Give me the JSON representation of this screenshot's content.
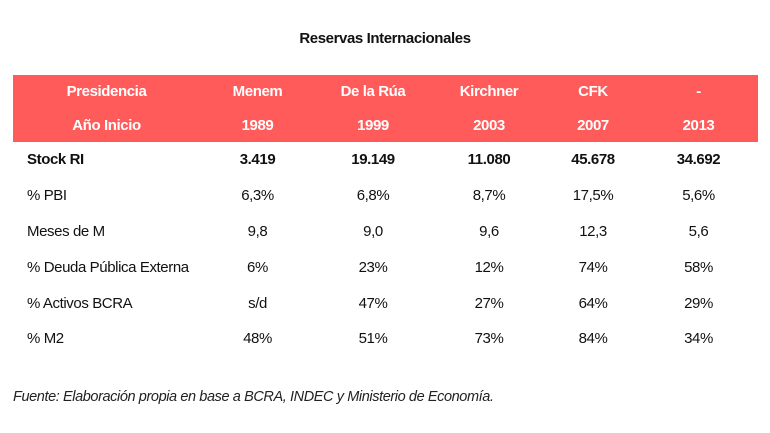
{
  "title": "Reservas Internacionales",
  "header_rows": [
    [
      "Presidencia",
      "Menem",
      "De la Rúa",
      "Kirchner",
      "CFK",
      "-"
    ],
    [
      "Año Inicio",
      "1989",
      "1999",
      "2003",
      "2007",
      "2013"
    ]
  ],
  "rows": [
    [
      "Stock RI",
      "3.419",
      "19.149",
      "11.080",
      "45.678",
      "34.692"
    ],
    [
      "% PBI",
      "6,3%",
      "6,8%",
      "8,7%",
      "17,5%",
      "5,6%"
    ],
    [
      "Meses de M",
      "9,8",
      "9,0",
      "9,6",
      "12,3",
      "5,6"
    ],
    [
      "% Deuda Pública Externa",
      "6%",
      "23%",
      "12%",
      "74%",
      "58%"
    ],
    [
      "% Activos BCRA",
      "s/d",
      "47%",
      "27%",
      "64%",
      "29%"
    ],
    [
      "% M2",
      "48%",
      "51%",
      "73%",
      "84%",
      "34%"
    ]
  ],
  "source": "Fuente: Elaboración propia en base a BCRA, INDEC y Ministerio de Economía.",
  "colors": {
    "header_bg": "#ff5b5b",
    "header_text": "#ffffff"
  }
}
